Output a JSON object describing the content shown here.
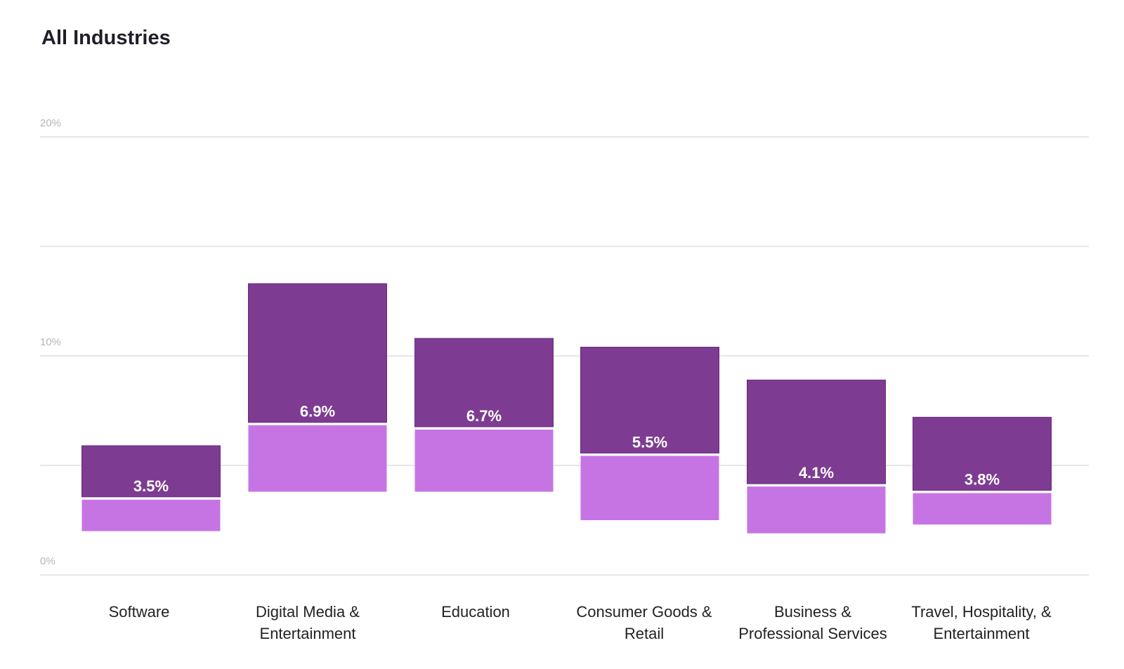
{
  "chart_data": {
    "type": "bar",
    "subtype": "floating-range",
    "title": "All Industries",
    "xlabel": "",
    "ylabel": "",
    "ylim": [
      0,
      20
    ],
    "yticks": [
      "0%",
      "10%",
      "20%"
    ],
    "gridlines": [
      0,
      5,
      10,
      15,
      20
    ],
    "grid": true,
    "colors": {
      "upper": "#7d3c91",
      "lower": "#c674e3",
      "grid": "#e6e6e6"
    },
    "categories": [
      [
        "Software"
      ],
      [
        "Digital Media &",
        "Entertainment"
      ],
      [
        "Education"
      ],
      [
        "Consumer Goods &",
        "Retail"
      ],
      [
        "Business &",
        "Professional Services"
      ],
      [
        "Travel, Hospitality, &",
        "Entertainment"
      ]
    ],
    "low": [
      2.0,
      3.8,
      3.8,
      2.5,
      1.9,
      2.3
    ],
    "median": [
      3.5,
      6.9,
      6.7,
      5.5,
      4.1,
      3.8
    ],
    "high": [
      5.9,
      13.3,
      10.8,
      10.4,
      8.9,
      7.2
    ],
    "labels": [
      "3.5%",
      "6.9%",
      "6.7%",
      "5.5%",
      "4.1%",
      "3.8%"
    ]
  }
}
